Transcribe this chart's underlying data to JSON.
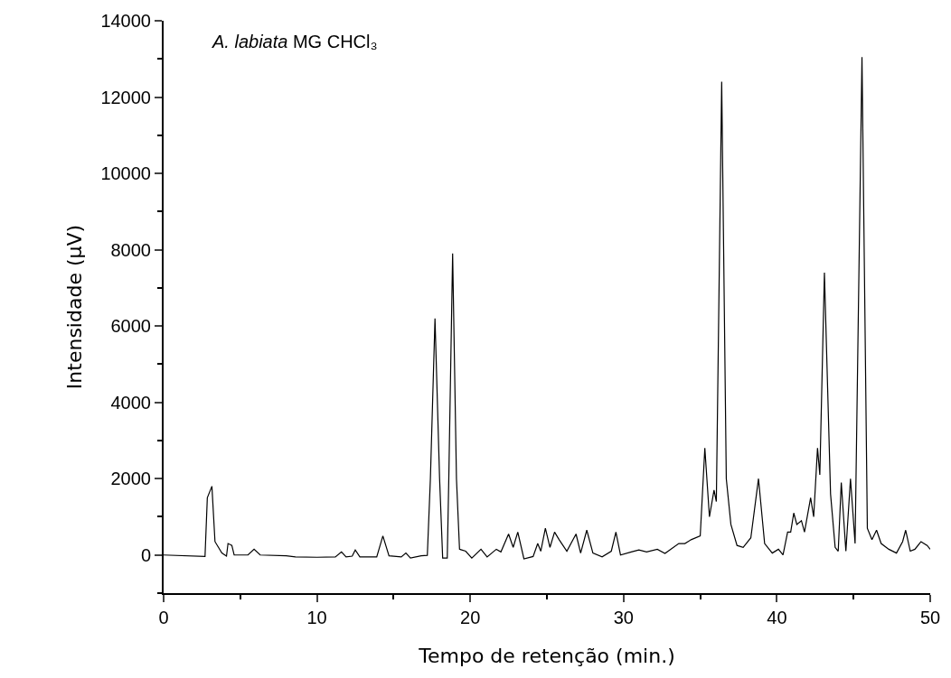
{
  "chart_data": {
    "type": "line",
    "xlabel": "Tempo de retenção (min.)",
    "ylabel": "Intensidade (μV)",
    "annotations": [
      "A. labiata MG CHCl₃"
    ],
    "xlim": [
      0,
      50
    ],
    "xticks": [
      0,
      10,
      20,
      30,
      40,
      50
    ],
    "ylim": [
      -1000,
      14000
    ],
    "yticks": [
      0,
      2000,
      4000,
      6000,
      8000,
      10000,
      12000,
      14000
    ],
    "marker": "none",
    "line_style": "solid",
    "series": [
      {
        "color": "#000000",
        "x": [
          0,
          2.7,
          2.85,
          3.15,
          3.35,
          3.8,
          4.1,
          4.2,
          4.45,
          4.6,
          5.5,
          5.9,
          6.3,
          8,
          8.6,
          10,
          11.2,
          11.6,
          11.9,
          12.3,
          12.5,
          12.8,
          13.9,
          14.3,
          14.7,
          15.5,
          15.8,
          16.1,
          16.8,
          17.2,
          17.4,
          17.7,
          18.0,
          18.2,
          18.5,
          18.6,
          18.85,
          19.1,
          19.3,
          19.7,
          20.1,
          20.7,
          21.1,
          21.7,
          22.0,
          22.5,
          22.8,
          23.1,
          23.5,
          24.1,
          24.4,
          24.6,
          24.9,
          25.2,
          25.5,
          25.8,
          26.3,
          26.9,
          27.2,
          27.6,
          28.0,
          28.6,
          29.2,
          29.5,
          29.8,
          30.5,
          31.0,
          31.5,
          32.2,
          32.7,
          33.6,
          34.0,
          34.4,
          35.0,
          35.3,
          35.6,
          35.9,
          36.05,
          36.4,
          36.7,
          37.0,
          37.4,
          37.8,
          38.3,
          38.8,
          39.2,
          39.7,
          40.1,
          40.4,
          40.7,
          40.9,
          41.1,
          41.3,
          41.6,
          41.8,
          42.2,
          42.4,
          42.65,
          42.8,
          43.1,
          43.5,
          43.8,
          44.0,
          44.2,
          44.5,
          44.8,
          45.1,
          45.55,
          45.9,
          46.2,
          46.5,
          46.8,
          47.3,
          47.8,
          48.2,
          48.4,
          48.7,
          49.0,
          49.4,
          49.8,
          50
        ],
        "values": [
          0,
          -40,
          1500,
          1800,
          350,
          50,
          -30,
          300,
          250,
          0,
          0,
          150,
          0,
          -20,
          -50,
          -60,
          -50,
          80,
          -50,
          -30,
          130,
          -50,
          -50,
          500,
          -20,
          -50,
          50,
          -80,
          -20,
          -10,
          2000,
          6200,
          2000,
          -80,
          -80,
          2000,
          7900,
          2000,
          150,
          100,
          -80,
          150,
          -50,
          150,
          80,
          550,
          200,
          600,
          -100,
          -40,
          300,
          100,
          700,
          200,
          600,
          400,
          100,
          550,
          50,
          650,
          50,
          -50,
          100,
          600,
          0,
          80,
          130,
          80,
          150,
          40,
          300,
          300,
          400,
          500,
          2800,
          1000,
          1700,
          1400,
          12400,
          2000,
          800,
          250,
          200,
          450,
          2000,
          300,
          50,
          150,
          0,
          600,
          600,
          1100,
          800,
          900,
          600,
          1500,
          1000,
          2800,
          2100,
          7400,
          1600,
          200,
          100,
          1900,
          100,
          2000,
          300,
          13050,
          700,
          400,
          650,
          300,
          150,
          50,
          350,
          650,
          100,
          150,
          350,
          250,
          150
        ]
      }
    ]
  }
}
